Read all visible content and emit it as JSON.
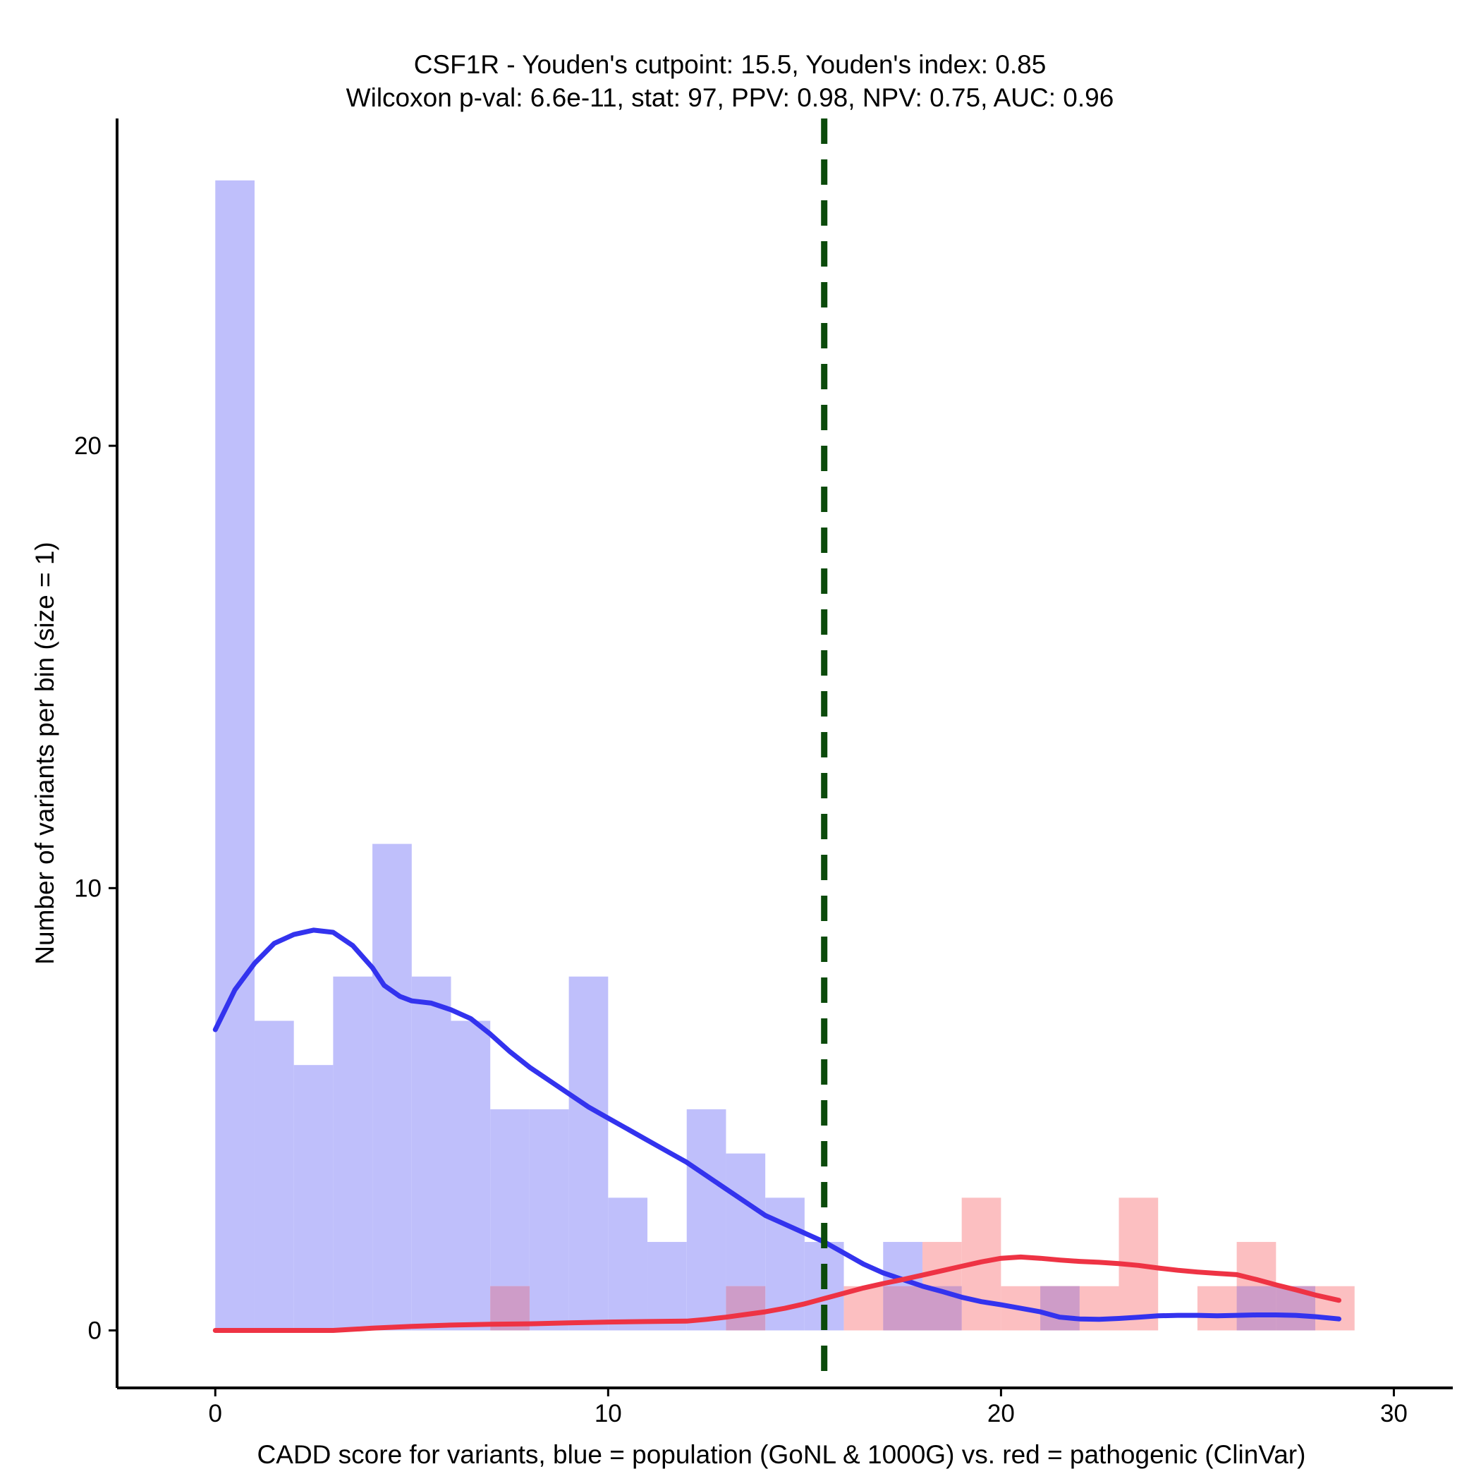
{
  "chart_data": {
    "type": "histogram",
    "title": "CSF1R - Youden's cutpoint: 15.5, Youden's index: 0.85",
    "subtitle": "Wilcoxon p-val: 6.6e-11, stat: 97, PPV: 0.98, NPV: 0.75, AUC: 0.96",
    "xlabel": "CADD score for variants, blue = population (GoNL & 1000G) vs. red = pathogenic (ClinVar)",
    "ylabel": "Number of variants per bin (size = 1)",
    "xlim": [
      -2.5,
      31.5
    ],
    "ylim": [
      -1.3,
      27.4
    ],
    "x_ticks": [
      0,
      10,
      20,
      30
    ],
    "x_tick_labels": [
      "0",
      "10",
      "20",
      "30"
    ],
    "y_ticks": [
      0,
      10,
      20
    ],
    "y_tick_labels": [
      "0",
      "10",
      "20"
    ],
    "cutpoint": 15.5,
    "bin_size": 1,
    "colors": {
      "population_fill": "#bfbffb",
      "pathogenic_fill": "#fcbfc1",
      "overlap_fill": "#ce9cc8",
      "population_line": "#3333ee",
      "pathogenic_line": "#ee3344",
      "cutpoint_line": "#0b4a0b"
    },
    "series": [
      {
        "name": "population (GoNL & 1000G)",
        "bins": [
          {
            "x0": 0,
            "count": 26
          },
          {
            "x0": 1,
            "count": 7
          },
          {
            "x0": 2,
            "count": 6
          },
          {
            "x0": 3,
            "count": 8
          },
          {
            "x0": 4,
            "count": 11
          },
          {
            "x0": 5,
            "count": 8
          },
          {
            "x0": 6,
            "count": 7
          },
          {
            "x0": 7,
            "count": 5
          },
          {
            "x0": 8,
            "count": 5
          },
          {
            "x0": 9,
            "count": 8
          },
          {
            "x0": 10,
            "count": 3
          },
          {
            "x0": 11,
            "count": 2
          },
          {
            "x0": 12,
            "count": 5
          },
          {
            "x0": 13,
            "count": 4
          },
          {
            "x0": 14,
            "count": 3
          },
          {
            "x0": 15,
            "count": 2
          },
          {
            "x0": 17,
            "count": 2
          },
          {
            "x0": 18,
            "count": 1
          },
          {
            "x0": 21,
            "count": 1
          },
          {
            "x0": 26,
            "count": 1
          },
          {
            "x0": 27,
            "count": 1
          }
        ],
        "density_curve": [
          [
            0,
            6.8
          ],
          [
            0.5,
            7.7
          ],
          [
            1,
            8.3
          ],
          [
            1.5,
            8.75
          ],
          [
            2,
            8.95
          ],
          [
            2.5,
            9.05
          ],
          [
            3,
            9.0
          ],
          [
            3.5,
            8.7
          ],
          [
            4,
            8.2
          ],
          [
            4.3,
            7.8
          ],
          [
            4.7,
            7.55
          ],
          [
            5,
            7.45
          ],
          [
            5.5,
            7.4
          ],
          [
            6,
            7.25
          ],
          [
            6.5,
            7.05
          ],
          [
            7,
            6.7
          ],
          [
            7.5,
            6.3
          ],
          [
            8,
            5.95
          ],
          [
            8.5,
            5.65
          ],
          [
            9,
            5.35
          ],
          [
            9.5,
            5.05
          ],
          [
            10,
            4.8
          ],
          [
            10.5,
            4.55
          ],
          [
            11,
            4.3
          ],
          [
            11.5,
            4.05
          ],
          [
            12,
            3.8
          ],
          [
            12.5,
            3.5
          ],
          [
            13,
            3.2
          ],
          [
            13.5,
            2.9
          ],
          [
            14,
            2.6
          ],
          [
            14.5,
            2.4
          ],
          [
            15,
            2.2
          ],
          [
            15.5,
            2.0
          ],
          [
            16,
            1.75
          ],
          [
            16.5,
            1.5
          ],
          [
            17,
            1.3
          ],
          [
            17.5,
            1.15
          ],
          [
            18,
            1.0
          ],
          [
            18.5,
            0.88
          ],
          [
            19,
            0.75
          ],
          [
            19.5,
            0.65
          ],
          [
            20,
            0.58
          ],
          [
            20.5,
            0.5
          ],
          [
            21,
            0.42
          ],
          [
            21.5,
            0.3
          ],
          [
            22,
            0.26
          ],
          [
            22.5,
            0.25
          ],
          [
            23,
            0.27
          ],
          [
            23.5,
            0.3
          ],
          [
            24,
            0.33
          ],
          [
            24.5,
            0.34
          ],
          [
            25,
            0.34
          ],
          [
            25.5,
            0.33
          ],
          [
            26,
            0.34
          ],
          [
            26.5,
            0.35
          ],
          [
            27,
            0.35
          ],
          [
            27.5,
            0.34
          ],
          [
            28,
            0.31
          ],
          [
            28.6,
            0.26
          ]
        ]
      },
      {
        "name": "pathogenic (ClinVar)",
        "bins": [
          {
            "x0": 7,
            "count": 1
          },
          {
            "x0": 13,
            "count": 1
          },
          {
            "x0": 16,
            "count": 1
          },
          {
            "x0": 17,
            "count": 1
          },
          {
            "x0": 18,
            "count": 2
          },
          {
            "x0": 19,
            "count": 3
          },
          {
            "x0": 20,
            "count": 1
          },
          {
            "x0": 21,
            "count": 1
          },
          {
            "x0": 22,
            "count": 1
          },
          {
            "x0": 23,
            "count": 3
          },
          {
            "x0": 25,
            "count": 1
          },
          {
            "x0": 26,
            "count": 2
          },
          {
            "x0": 27,
            "count": 1
          },
          {
            "x0": 28,
            "count": 1
          }
        ],
        "density_curve": [
          [
            0,
            0.0
          ],
          [
            1,
            0.0
          ],
          [
            2,
            0.0
          ],
          [
            3,
            0.0
          ],
          [
            4,
            0.05
          ],
          [
            5,
            0.09
          ],
          [
            6,
            0.12
          ],
          [
            7,
            0.14
          ],
          [
            8,
            0.15
          ],
          [
            9,
            0.17
          ],
          [
            10,
            0.19
          ],
          [
            11,
            0.2
          ],
          [
            12,
            0.21
          ],
          [
            12.5,
            0.25
          ],
          [
            13,
            0.3
          ],
          [
            13.5,
            0.36
          ],
          [
            14,
            0.42
          ],
          [
            14.5,
            0.5
          ],
          [
            15,
            0.6
          ],
          [
            15.5,
            0.72
          ],
          [
            16,
            0.84
          ],
          [
            16.5,
            0.96
          ],
          [
            17,
            1.06
          ],
          [
            17.5,
            1.15
          ],
          [
            18,
            1.25
          ],
          [
            18.5,
            1.35
          ],
          [
            19,
            1.45
          ],
          [
            19.5,
            1.55
          ],
          [
            20,
            1.63
          ],
          [
            20.5,
            1.66
          ],
          [
            21,
            1.63
          ],
          [
            21.5,
            1.59
          ],
          [
            22,
            1.56
          ],
          [
            22.5,
            1.54
          ],
          [
            23,
            1.51
          ],
          [
            23.5,
            1.47
          ],
          [
            24,
            1.41
          ],
          [
            24.5,
            1.36
          ],
          [
            25,
            1.32
          ],
          [
            25.5,
            1.29
          ],
          [
            26,
            1.26
          ],
          [
            26.5,
            1.15
          ],
          [
            27,
            1.03
          ],
          [
            27.5,
            0.92
          ],
          [
            28,
            0.8
          ],
          [
            28.6,
            0.68
          ]
        ]
      }
    ]
  }
}
